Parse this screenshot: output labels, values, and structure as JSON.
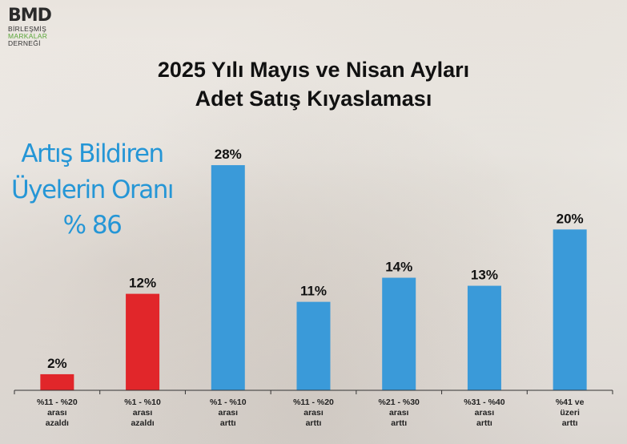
{
  "logo": {
    "main": "BMD",
    "line1": "BİRLEŞMİŞ",
    "line2": "MARKALAR",
    "line3": "DERNEĞİ"
  },
  "title_line1": "2025 Yılı Mayıs ve Nisan Ayları",
  "title_line2": "Adet Satış Kıyaslaması",
  "callout": {
    "line1": "Artış Bildiren",
    "line2": "Üyelerin Oranı",
    "line3": "% 86"
  },
  "colors": {
    "decrease": "#e1262a",
    "increase": "#3a9ad9",
    "callout": "#2596d6"
  },
  "chart_data": {
    "type": "bar",
    "title": "2025 Yılı Mayıs ve Nisan Ayları Adet Satış Kıyaslaması",
    "xlabel": "",
    "ylabel": "",
    "ylim": [
      0,
      30
    ],
    "grid": false,
    "categories": [
      [
        "%11 - %20",
        "arası",
        "azaldı"
      ],
      [
        "%1 - %10",
        "arası",
        "azaldı"
      ],
      [
        "%1 - %10",
        "arası",
        "arttı"
      ],
      [
        "%11 - %20",
        "arası",
        "arttı"
      ],
      [
        "%21 - %30",
        "arası",
        "arttı"
      ],
      [
        "%31 - %40",
        "arası",
        "arttı"
      ],
      [
        "%41 ve",
        "üzeri",
        "arttı"
      ]
    ],
    "values": [
      2,
      12,
      28,
      11,
      14,
      13,
      20
    ],
    "labels": [
      "2%",
      "12%",
      "28%",
      "11%",
      "14%",
      "13%",
      "20%"
    ],
    "bar_colors": [
      "#e1262a",
      "#e1262a",
      "#3a9ad9",
      "#3a9ad9",
      "#3a9ad9",
      "#3a9ad9",
      "#3a9ad9"
    ]
  }
}
